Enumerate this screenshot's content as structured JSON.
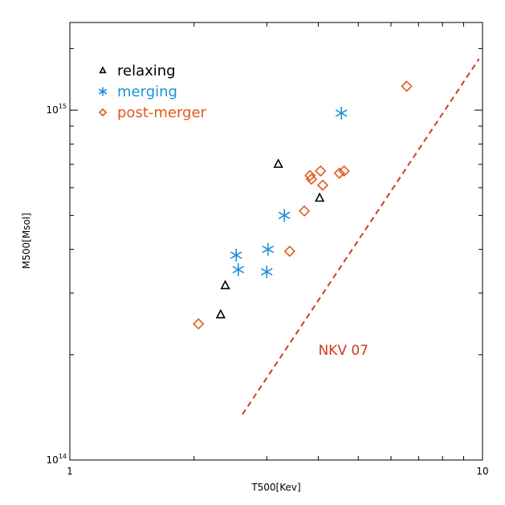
{
  "chart_data": {
    "type": "scatter",
    "xlabel": "T500[Kev]",
    "ylabel": "M500[Msol]",
    "x_scale": "log",
    "y_scale": "log",
    "xlim": [
      1,
      10
    ],
    "ylim": [
      100000000000000.0,
      1780000000000000.0
    ],
    "x_ticks": [
      {
        "value": 1,
        "label": "1"
      },
      {
        "value": 10,
        "label": "10"
      }
    ],
    "y_ticks": [
      {
        "value": 100000000000000.0,
        "base": "10",
        "exp": "14"
      },
      {
        "value": 1000000000000000.0,
        "base": "10",
        "exp": "15"
      }
    ],
    "grid": false,
    "legend_placement": "top-left",
    "series": [
      {
        "name": "relaxing",
        "marker": "triangle",
        "color": "#000000",
        "points": [
          {
            "x": 2.32,
            "y": 260000000000000.0
          },
          {
            "x": 2.38,
            "y": 315000000000000.0
          },
          {
            "x": 3.2,
            "y": 700000000000000.0
          },
          {
            "x": 4.03,
            "y": 560000000000000.0
          }
        ]
      },
      {
        "name": "merging",
        "marker": "asterisk",
        "color": "#1e90d8",
        "points": [
          {
            "x": 2.53,
            "y": 385000000000000.0
          },
          {
            "x": 2.56,
            "y": 350000000000000.0
          },
          {
            "x": 3.0,
            "y": 345000000000000.0
          },
          {
            "x": 3.02,
            "y": 400000000000000.0
          },
          {
            "x": 3.31,
            "y": 500000000000000.0
          },
          {
            "x": 4.55,
            "y": 980000000000000.0
          }
        ]
      },
      {
        "name": "post-merger",
        "marker": "diamond",
        "color": "#e05a1a",
        "points": [
          {
            "x": 2.05,
            "y": 245000000000000.0
          },
          {
            "x": 3.41,
            "y": 395000000000000.0
          },
          {
            "x": 3.7,
            "y": 515000000000000.0
          },
          {
            "x": 3.82,
            "y": 650000000000000.0
          },
          {
            "x": 3.85,
            "y": 635000000000000.0
          },
          {
            "x": 4.05,
            "y": 670000000000000.0
          },
          {
            "x": 4.1,
            "y": 610000000000000.0
          },
          {
            "x": 4.5,
            "y": 660000000000000.0
          },
          {
            "x": 4.62,
            "y": 670000000000000.0
          },
          {
            "x": 6.55,
            "y": 1170000000000000.0
          }
        ]
      }
    ],
    "reference_line": {
      "label": "NKV 07",
      "color": "#d23a1e",
      "style": "dashed",
      "points": [
        {
          "x": 2.62,
          "y": 135000000000000.0
        },
        {
          "x": 9.8,
          "y": 1400000000000000.0
        }
      ]
    },
    "annotation": {
      "text": "NKV 07",
      "x": 4.0,
      "y": 200000000000000.0,
      "color": "#d23a1e"
    }
  }
}
